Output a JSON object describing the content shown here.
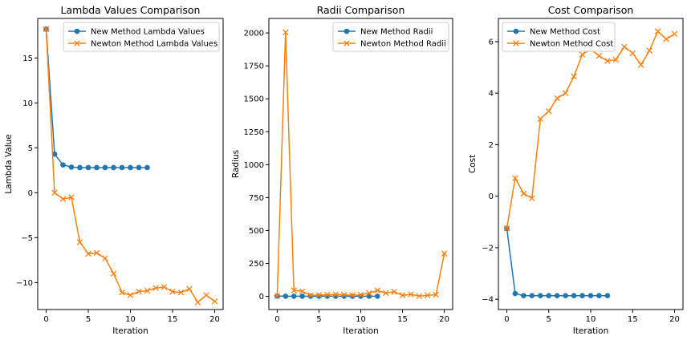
{
  "chart_data": [
    {
      "type": "line",
      "title": "Lambda Values Comparison",
      "xlabel": "Iteration",
      "ylabel": "Lambda Value",
      "xlim": [
        -1,
        21
      ],
      "ylim": [
        -13,
        19.4
      ],
      "xticks": [
        0,
        5,
        10,
        15,
        20
      ],
      "yticks": [
        -10,
        -5,
        0,
        5,
        10,
        15
      ],
      "ytick_labels": [
        "−10",
        "−5",
        "0",
        "5",
        "10",
        "15"
      ],
      "legend_position": "top-right",
      "series": [
        {
          "name": "New Method Lambda Values",
          "color": "#1f77b4",
          "marker": "circle",
          "x": [
            0,
            1,
            2,
            3,
            4,
            5,
            6,
            7,
            8,
            9,
            10,
            11,
            12
          ],
          "y": [
            18.2,
            4.3,
            3.1,
            2.85,
            2.8,
            2.8,
            2.8,
            2.8,
            2.8,
            2.8,
            2.8,
            2.8,
            2.8
          ]
        },
        {
          "name": "Newton Method Lambda Values",
          "color": "#ff7f0e",
          "marker": "x",
          "x": [
            0,
            1,
            2,
            3,
            4,
            5,
            6,
            7,
            8,
            9,
            10,
            11,
            12,
            13,
            14,
            15,
            16,
            17,
            18,
            19,
            20
          ],
          "y": [
            18.2,
            0.0,
            -0.7,
            -0.5,
            -5.5,
            -6.8,
            -6.7,
            -7.3,
            -9.0,
            -11.1,
            -11.4,
            -11.0,
            -10.9,
            -10.6,
            -10.5,
            -11.0,
            -11.1,
            -10.7,
            -12.2,
            -11.4,
            -12.1
          ]
        }
      ]
    },
    {
      "type": "line",
      "title": "Radii Comparison",
      "xlabel": "Iteration",
      "ylabel": "Radius",
      "xlim": [
        -1,
        21
      ],
      "ylim": [
        -100,
        2110
      ],
      "xticks": [
        0,
        5,
        10,
        15,
        20
      ],
      "yticks": [
        0,
        250,
        500,
        750,
        1000,
        1250,
        1500,
        1750,
        2000
      ],
      "ytick_labels": [
        "0",
        "250",
        "500",
        "750",
        "1000",
        "1250",
        "1500",
        "1750",
        "2000"
      ],
      "legend_position": "top-right",
      "series": [
        {
          "name": "New Method Radii",
          "color": "#1f77b4",
          "marker": "circle",
          "x": [
            0,
            1,
            2,
            3,
            4,
            5,
            6,
            7,
            8,
            9,
            10,
            11,
            12
          ],
          "y": [
            2,
            1,
            1,
            1,
            1,
            1,
            1,
            1,
            1,
            1,
            1,
            1,
            1
          ]
        },
        {
          "name": "Newton Method Radii",
          "color": "#ff7f0e",
          "marker": "x",
          "x": [
            0,
            1,
            2,
            3,
            4,
            5,
            6,
            7,
            8,
            9,
            10,
            11,
            12,
            13,
            14,
            15,
            16,
            17,
            18,
            19,
            20
          ],
          "y": [
            2,
            2005,
            45,
            38,
            8,
            10,
            12,
            15,
            12,
            8,
            12,
            25,
            45,
            25,
            35,
            8,
            15,
            2,
            8,
            12,
            325
          ]
        }
      ]
    },
    {
      "type": "line",
      "title": "Cost Comparison",
      "xlabel": "Iteration",
      "ylabel": "Cost",
      "xlim": [
        -1,
        21
      ],
      "ylim": [
        -4.4,
        6.9
      ],
      "xticks": [
        0,
        5,
        10,
        15,
        20
      ],
      "yticks": [
        -4,
        -2,
        0,
        2,
        4,
        6
      ],
      "ytick_labels": [
        "−4",
        "−2",
        "0",
        "2",
        "4",
        "6"
      ],
      "legend_position": "top-left",
      "series": [
        {
          "name": "New Method Cost",
          "color": "#1f77b4",
          "marker": "circle",
          "x": [
            0,
            1,
            2,
            3,
            4,
            5,
            6,
            7,
            8,
            9,
            10,
            11,
            12
          ],
          "y": [
            -1.25,
            -3.78,
            -3.86,
            -3.86,
            -3.86,
            -3.86,
            -3.86,
            -3.86,
            -3.86,
            -3.86,
            -3.86,
            -3.86,
            -3.86
          ]
        },
        {
          "name": "Newton Method Cost",
          "color": "#ff7f0e",
          "marker": "x",
          "x": [
            0,
            1,
            2,
            3,
            4,
            5,
            6,
            7,
            8,
            9,
            10,
            11,
            12,
            13,
            14,
            15,
            16,
            17,
            18,
            19,
            20
          ],
          "y": [
            -1.25,
            0.7,
            0.1,
            -0.08,
            3.0,
            3.3,
            3.8,
            4.0,
            4.65,
            5.5,
            5.7,
            5.45,
            5.25,
            5.3,
            5.8,
            5.55,
            5.1,
            5.65,
            6.4,
            6.1,
            6.3
          ]
        }
      ]
    }
  ]
}
